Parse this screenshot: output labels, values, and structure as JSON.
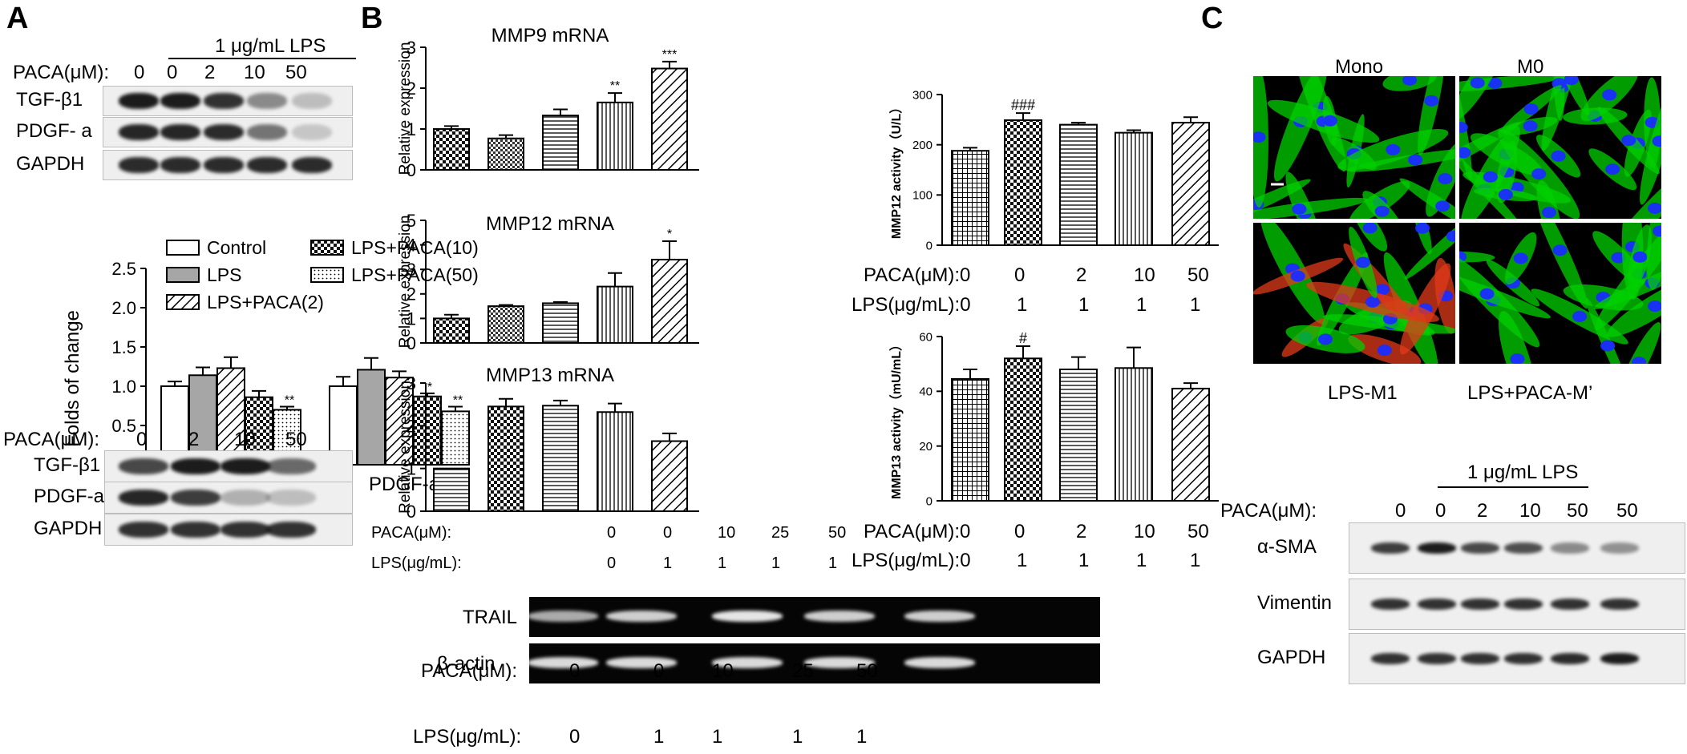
{
  "panels": {
    "a": "A",
    "b": "B",
    "c": "C"
  },
  "colors": {
    "band": "#111111",
    "gel_band": "#f2f2f2",
    "membrane": "#efefef",
    "gel": "#050505",
    "actin": "#00d000",
    "nuclei": "#1a2cff",
    "red": "#e03a1a"
  },
  "icons": {
    "bar_patterns": [
      "diagonal-stripes-icon",
      "checker-icon",
      "horizontal-stripes-icon",
      "vertical-stripes-icon",
      "dots-icon",
      "grid-icon"
    ]
  },
  "A": {
    "top_blot": {
      "header": "1 μg/mL LPS",
      "paca_label": "PACA(μM):",
      "lanes": [
        "0",
        "0",
        "2",
        "10",
        "50"
      ],
      "rows": [
        "TGF-β1",
        "PDGF- a",
        "GAPDH"
      ]
    },
    "bottom_blot": {
      "paca_label": "PACA(μM):",
      "lanes": [
        "0",
        "2",
        "10",
        "50"
      ],
      "rows": [
        "TGF-β1",
        "PDGF-a",
        "GAPDH"
      ]
    }
  },
  "B": {
    "gel": {
      "rows": [
        "TRAIL",
        "β-actin"
      ],
      "paca_label": "PACA(μM):",
      "paca_values": [
        "0",
        "0",
        "10",
        "25",
        "50"
      ],
      "lps_label": "LPS(μg/mL):",
      "lps_values": [
        "0",
        "1",
        "1",
        "1",
        "1"
      ]
    },
    "mmp_labels": {
      "paca_label": "PACA(μM):",
      "paca_values": [
        "0",
        "0",
        "10",
        "25",
        "50"
      ],
      "lps_label": "LPS(μg/mL):",
      "lps_values": [
        "0",
        "1",
        "1",
        "1",
        "1"
      ]
    },
    "activity_labels": {
      "paca_label": "PACA(μM):0",
      "paca_values": [
        "0",
        "2",
        "10",
        "50"
      ],
      "lps_label": "LPS(μg/mL):0",
      "lps_values": [
        "1",
        "1",
        "1",
        "1"
      ]
    }
  },
  "C": {
    "micro_labels": {
      "tl": "Mono",
      "tr": "M0",
      "bl": "LPS-M1",
      "br": "LPS+PACA-M’"
    },
    "blot": {
      "header": "1 μg/mL LPS",
      "paca_label": "PACA(μM):",
      "lanes": [
        "0",
        "0",
        "2",
        "10",
        "50",
        "50"
      ],
      "rows": [
        "α-SMA",
        "Vimentin",
        "GAPDH"
      ]
    }
  },
  "chart_data": [
    {
      "id": "A-folds",
      "type": "bar",
      "categories": [
        "TGF-β1",
        "PDGF-a"
      ],
      "ylabel": "Folds of change",
      "ylim": [
        0,
        2.5
      ],
      "yticks": [
        0,
        0.5,
        1.0,
        1.5,
        2.0,
        2.5
      ],
      "series": [
        {
          "name": "Control",
          "pattern": "white",
          "values": [
            1.0,
            1.0
          ],
          "err": [
            0.06,
            0.12
          ],
          "sig": [
            "",
            ""
          ]
        },
        {
          "name": "LPS",
          "pattern": "gray",
          "values": [
            1.14,
            1.21
          ],
          "err": [
            0.1,
            0.15
          ],
          "sig": [
            "",
            ""
          ]
        },
        {
          "name": "LPS+PACA(2)",
          "pattern": "diag",
          "values": [
            1.23,
            1.11
          ],
          "err": [
            0.14,
            0.08
          ],
          "sig": [
            "",
            ""
          ]
        },
        {
          "name": "LPS+PACA(10)",
          "pattern": "check",
          "values": [
            0.86,
            0.87
          ],
          "err": [
            0.08,
            0.04
          ],
          "sig": [
            "",
            "*"
          ]
        },
        {
          "name": "LPS+PACA(50)",
          "pattern": "dots",
          "values": [
            0.7,
            0.68
          ],
          "err": [
            0.04,
            0.06
          ],
          "sig": [
            "**",
            "**"
          ]
        }
      ],
      "legend": "top"
    },
    {
      "id": "B-mmp9",
      "type": "bar",
      "title": "MMP9 mRNA",
      "ylabel": "Relative expression",
      "ylim": [
        0,
        3
      ],
      "yticks": [
        0,
        1,
        2,
        3
      ],
      "patterns": [
        "check",
        "check2",
        "hstripe",
        "vstripe",
        "diag"
      ],
      "values": [
        1.0,
        0.77,
        1.33,
        1.65,
        2.48
      ],
      "err": [
        0.07,
        0.08,
        0.15,
        0.23,
        0.17
      ],
      "sig": [
        "",
        "",
        "",
        "**",
        "***"
      ]
    },
    {
      "id": "B-mmp12",
      "type": "bar",
      "title": "MMP12 mRNA",
      "ylabel": "Relative expression",
      "ylim": [
        0,
        5
      ],
      "yticks": [
        0,
        1,
        2,
        3,
        4,
        5
      ],
      "patterns": [
        "check",
        "check2",
        "hstripe",
        "vstripe",
        "diag"
      ],
      "values": [
        1.0,
        1.5,
        1.62,
        2.3,
        3.4
      ],
      "err": [
        0.15,
        0.05,
        0.05,
        0.55,
        0.75
      ],
      "sig": [
        "",
        "",
        "",
        "",
        "*"
      ]
    },
    {
      "id": "B-mmp13",
      "type": "bar",
      "title": "MMP13 mRNA",
      "ylabel": "Relative expression",
      "ylim": [
        0,
        3
      ],
      "yticks": [
        0,
        1,
        2,
        3
      ],
      "patterns": [
        "hstripe",
        "check",
        "hstripe",
        "vstripe",
        "diag"
      ],
      "values": [
        1.0,
        2.45,
        2.47,
        2.32,
        1.64
      ],
      "err": [
        0.0,
        0.18,
        0.12,
        0.2,
        0.18
      ],
      "sig": [
        "",
        "",
        "",
        "",
        ""
      ]
    },
    {
      "id": "B-mmp12act",
      "type": "bar",
      "ylabel": "MMP12 activity（U/L）",
      "ylim": [
        0,
        300
      ],
      "yticks": [
        0,
        100,
        200,
        300
      ],
      "patterns": [
        "grid",
        "check",
        "hstripe",
        "vstripe",
        "diag"
      ],
      "values": [
        188,
        249,
        240,
        224,
        244
      ],
      "err": [
        6,
        14,
        4,
        5,
        11
      ],
      "sig": [
        "",
        "###",
        "",
        "",
        ""
      ]
    },
    {
      "id": "B-mmp13act",
      "type": "bar",
      "ylabel": "MMP13 activity（mU/mL）",
      "ylim": [
        0,
        60
      ],
      "yticks": [
        0,
        20,
        40,
        60
      ],
      "patterns": [
        "grid",
        "check",
        "hstripe",
        "vstripe",
        "diag"
      ],
      "values": [
        44.5,
        52,
        48,
        48.5,
        41
      ],
      "err": [
        3.5,
        4.5,
        4.5,
        7.5,
        2
      ],
      "sig": [
        "",
        "#",
        "",
        "",
        ""
      ]
    }
  ]
}
